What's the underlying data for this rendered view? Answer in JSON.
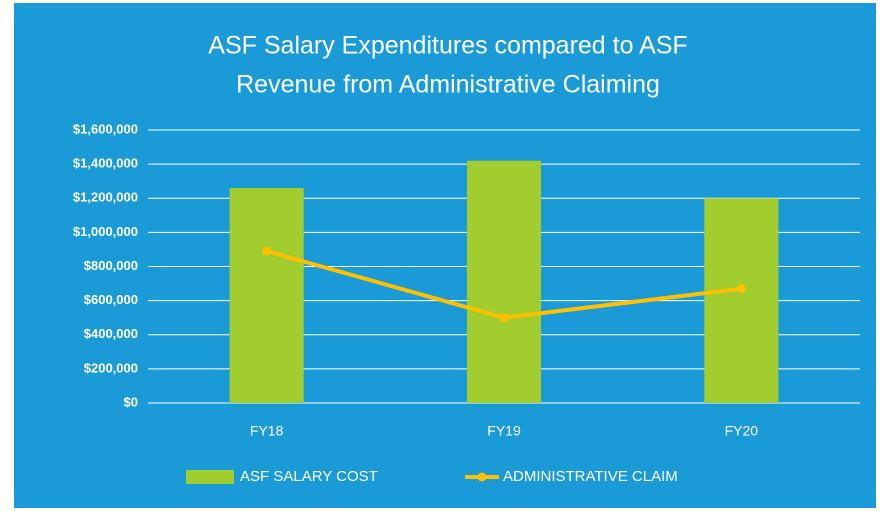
{
  "chart_data": {
    "type": "bar",
    "title": [
      "ASF Salary Expenditures compared to ASF",
      "Revenue from Administrative Claiming"
    ],
    "categories": [
      "FY18",
      "FY19",
      "FY20"
    ],
    "series": [
      {
        "name": "ASF SALARY COST",
        "type": "bar",
        "color": "#a2cd2e",
        "values": [
          1260000,
          1420000,
          1200000
        ]
      },
      {
        "name": "ADMINISTRATIVE CLAIM",
        "type": "line",
        "color": "#ffc000",
        "values": [
          890000,
          500000,
          670000
        ]
      }
    ],
    "ylim": [
      0,
      1600000
    ],
    "yticks": [
      {
        "value": 0,
        "label": "$0"
      },
      {
        "value": 200000,
        "label": "$200,000"
      },
      {
        "value": 400000,
        "label": "$400,000"
      },
      {
        "value": 600000,
        "label": "$600,000"
      },
      {
        "value": 800000,
        "label": "$800,000"
      },
      {
        "value": 1000000,
        "label": "$1,000,000"
      },
      {
        "value": 1200000,
        "label": "$1,200,000"
      },
      {
        "value": 1400000,
        "label": "$1,400,000"
      },
      {
        "value": 1600000,
        "label": "$1,600,000"
      }
    ],
    "grid": true,
    "legend": "bottom",
    "background": "#1a9ad7"
  }
}
